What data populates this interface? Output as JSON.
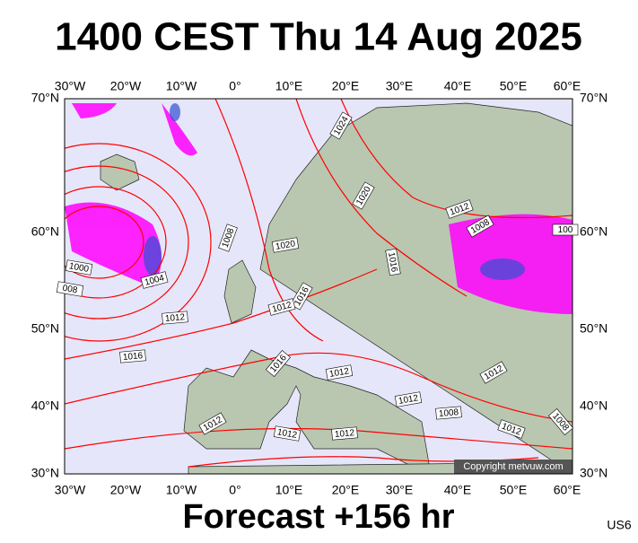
{
  "header": {
    "title": "1400 CEST Thu 14 Aug 2025"
  },
  "lon_labels": [
    "30°W",
    "20°W",
    "10°W",
    "0°",
    "10°E",
    "20°E",
    "30°E",
    "40°E",
    "50°E",
    "60°E"
  ],
  "lat_labels": [
    "70°N",
    "60°N",
    "50°N",
    "40°N",
    "30°N"
  ],
  "isobar_labels": [
    "1024",
    "1020",
    "1012",
    "1008",
    "100",
    "1016",
    "1020",
    "1008",
    "1000",
    "008",
    "1004",
    "1016",
    "1012",
    "1012",
    "1016",
    "1016",
    "1012",
    "1012",
    "1008",
    "1012",
    "1012",
    "1012",
    "1012",
    "1012",
    "1008"
  ],
  "copyright": "Copyright metvuw.com",
  "footer": {
    "forecast": "Forecast +156 hr",
    "code": "US6"
  }
}
